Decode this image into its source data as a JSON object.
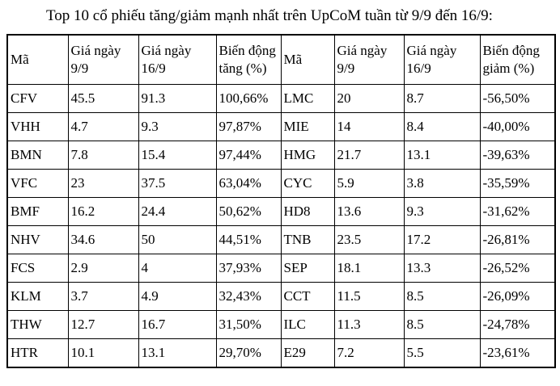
{
  "page": {
    "title": "Top 10 cổ phiếu tăng/giảm mạnh nhất trên UpCoM tuần từ 9/9 đến 16/9:"
  },
  "table": {
    "gainers": {
      "headers": [
        "Mã",
        "Giá ngày 9/9",
        "Giá ngày 16/9",
        "Biến động tăng (%)"
      ],
      "rows": [
        [
          "CFV",
          "45.5",
          "91.3",
          "100,66%"
        ],
        [
          "VHH",
          "4.7",
          "9.3",
          "97,87%"
        ],
        [
          "BMN",
          "7.8",
          "15.4",
          "97,44%"
        ],
        [
          "VFC",
          "23",
          "37.5",
          "63,04%"
        ],
        [
          "BMF",
          "16.2",
          "24.4",
          "50,62%"
        ],
        [
          "NHV",
          "34.6",
          "50",
          "44,51%"
        ],
        [
          "FCS",
          "2.9",
          "4",
          "37,93%"
        ],
        [
          "KLM",
          "3.7",
          "4.9",
          "32,43%"
        ],
        [
          "THW",
          "12.7",
          "16.7",
          "31,50%"
        ],
        [
          "HTR",
          "10.1",
          "13.1",
          "29,70%"
        ]
      ]
    },
    "losers": {
      "headers": [
        "Mã",
        "Giá ngày 9/9",
        "Giá ngày 16/9",
        "Biến động giảm (%)"
      ],
      "rows": [
        [
          "LMC",
          "20",
          "8.7",
          "-56,50%"
        ],
        [
          "MIE",
          "14",
          "8.4",
          "-40,00%"
        ],
        [
          "HMG",
          "21.7",
          "13.1",
          "-39,63%"
        ],
        [
          "CYC",
          "5.9",
          "3.8",
          "-35,59%"
        ],
        [
          "HD8",
          "13.6",
          "9.3",
          "-31,62%"
        ],
        [
          "TNB",
          "23.5",
          "17.2",
          "-26,81%"
        ],
        [
          "SEP",
          "18.1",
          "13.3",
          "-26,52%"
        ],
        [
          "CCT",
          "11.5",
          "8.5",
          "-26,09%"
        ],
        [
          "ILC",
          "11.3",
          "8.5",
          "-24,78%"
        ],
        [
          "E29",
          "7.2",
          "5.5",
          "-23,61%"
        ]
      ]
    }
  }
}
